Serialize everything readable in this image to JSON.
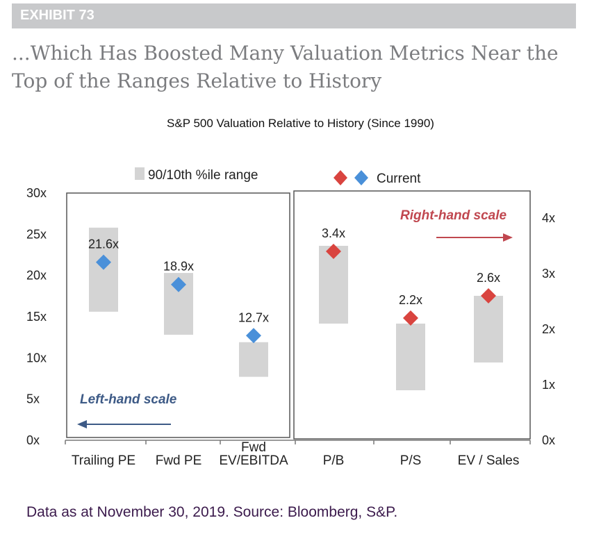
{
  "exhibit": {
    "label": "EXHIBIT 73"
  },
  "headline": "...Which Has Boosted Many Valuation Metrics Near the Top of the Ranges Relative to History",
  "footnote": "Data as at November 30, 2019. Source: Bloomberg, S&P.",
  "colors": {
    "range_bar": "#d4d4d4",
    "marker_left": "#4a90d9",
    "marker_right": "#d9443f",
    "left_scale_text": "#3d5a86",
    "right_scale_text": "#c0474f",
    "footnote": "#3b1a4c",
    "exhibit_bar": "#c8c9cb"
  },
  "chart_data": {
    "type": "range_bar_with_markers",
    "title": "S&P 500 Valuation Relative to History (Since 1990)",
    "legend": {
      "range_label": "90/10th %ile range",
      "current_label": "Current",
      "placement": "top"
    },
    "left_axis": {
      "ticks": [
        "0x",
        "5x",
        "10x",
        "15x",
        "20x",
        "25x",
        "30x"
      ],
      "range": [
        0,
        30
      ],
      "scale_label": "Left-hand scale"
    },
    "right_axis": {
      "ticks": [
        "0x",
        "1x",
        "2x",
        "3x",
        "4x"
      ],
      "range": [
        0,
        4
      ],
      "scale_label": "Right-hand scale"
    },
    "left_panel": [
      {
        "category": "Trailing PE",
        "low": 15.6,
        "high": 25.8,
        "current": 21.6,
        "current_label": "21.6x"
      },
      {
        "category": "Fwd PE",
        "low": 12.8,
        "high": 20.3,
        "current": 18.9,
        "current_label": "18.9x"
      },
      {
        "category": "Fwd EV/EBITDA",
        "category_lines": [
          "Fwd",
          "EV/EBITDA"
        ],
        "low": 7.7,
        "high": 11.9,
        "current": 12.7,
        "current_label": "12.7x"
      }
    ],
    "right_panel": [
      {
        "category": "P/B",
        "low": 2.1,
        "high": 3.5,
        "current": 3.4,
        "current_label": "3.4x"
      },
      {
        "category": "P/S",
        "low": 0.9,
        "high": 2.1,
        "current": 2.2,
        "current_label": "2.2x"
      },
      {
        "category": "EV / Sales",
        "low": 1.4,
        "high": 2.6,
        "current": 2.6,
        "current_label": "2.6x"
      }
    ]
  }
}
